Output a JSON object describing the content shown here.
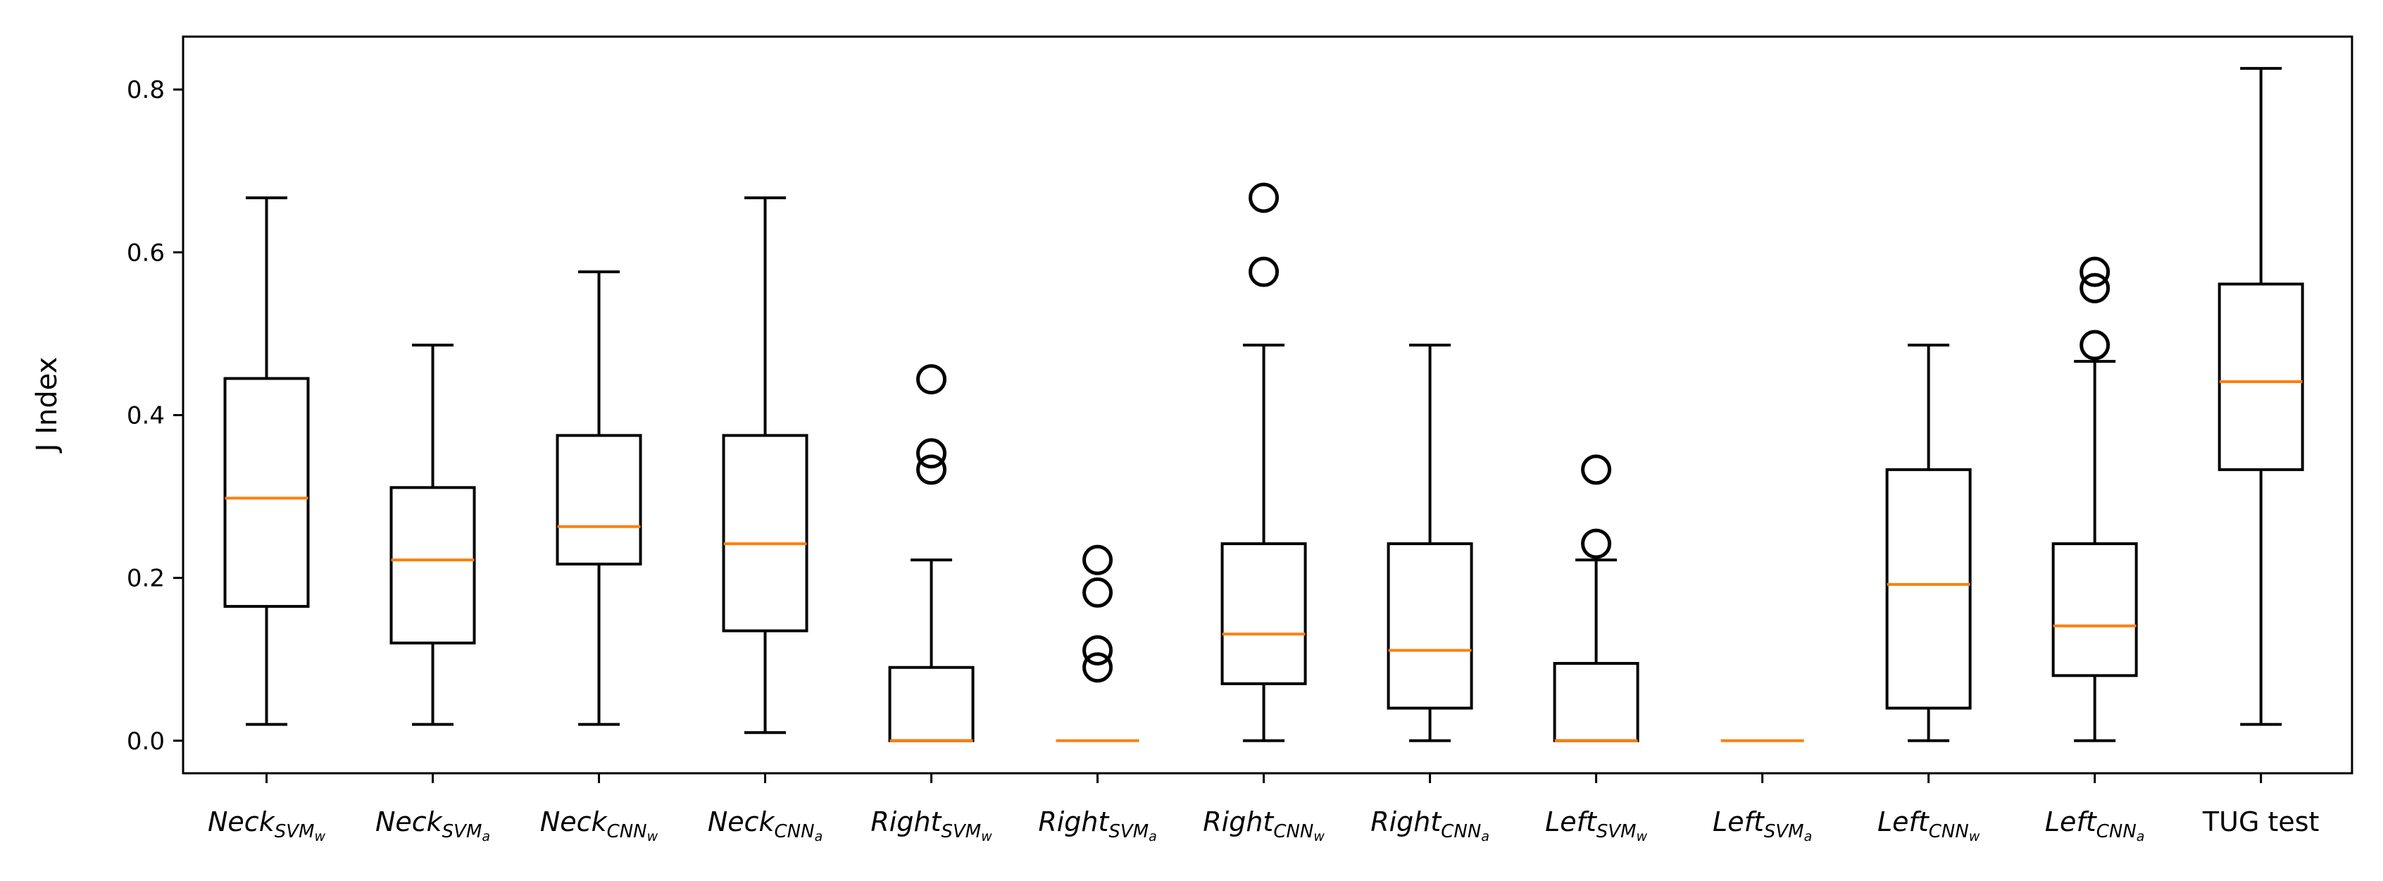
{
  "chart_data": {
    "type": "box",
    "ylabel": "J Index",
    "ylim": [
      -0.04,
      0.865
    ],
    "yticks": [
      "0.0",
      "0.2",
      "0.4",
      "0.6",
      "0.8"
    ],
    "grid": false,
    "legend": "none",
    "colors": {
      "box": "#000000",
      "median": "#ff7f0e",
      "outlier": "#000000"
    },
    "categories": [
      {
        "base": "Neck",
        "sub": "SVM",
        "subsub": "w"
      },
      {
        "base": "Neck",
        "sub": "SVM",
        "subsub": "a"
      },
      {
        "base": "Neck",
        "sub": "CNN",
        "subsub": "w"
      },
      {
        "base": "Neck",
        "sub": "CNN",
        "subsub": "a"
      },
      {
        "base": "Right",
        "sub": "SVM",
        "subsub": "w"
      },
      {
        "base": "Right",
        "sub": "SVM",
        "subsub": "a"
      },
      {
        "base": "Right",
        "sub": "CNN",
        "subsub": "w"
      },
      {
        "base": "Right",
        "sub": "CNN",
        "subsub": "a"
      },
      {
        "base": "Left",
        "sub": "SVM",
        "subsub": "w"
      },
      {
        "base": "Left",
        "sub": "SVM",
        "subsub": "a"
      },
      {
        "base": "Left",
        "sub": "CNN",
        "subsub": "w"
      },
      {
        "base": "Left",
        "sub": "CNN",
        "subsub": "a"
      },
      {
        "base": "TUG test",
        "sub": "",
        "subsub": ""
      }
    ],
    "boxes": [
      {
        "whisker_low": 0.02,
        "q1": 0.165,
        "median": 0.298,
        "q3": 0.445,
        "whisker_high": 0.667,
        "outliers": []
      },
      {
        "whisker_low": 0.02,
        "q1": 0.12,
        "median": 0.222,
        "q3": 0.311,
        "whisker_high": 0.486,
        "outliers": []
      },
      {
        "whisker_low": 0.02,
        "q1": 0.217,
        "median": 0.263,
        "q3": 0.375,
        "whisker_high": 0.576,
        "outliers": []
      },
      {
        "whisker_low": 0.01,
        "q1": 0.135,
        "median": 0.242,
        "q3": 0.375,
        "whisker_high": 0.667,
        "outliers": []
      },
      {
        "whisker_low": 0.0,
        "q1": 0.0,
        "median": 0.0,
        "q3": 0.09,
        "whisker_high": 0.222,
        "outliers": [
          0.333,
          0.353,
          0.444
        ]
      },
      {
        "whisker_low": 0.0,
        "q1": 0.0,
        "median": 0.0,
        "q3": 0.0,
        "whisker_high": 0.0,
        "outliers": [
          0.09,
          0.111,
          0.182,
          0.222
        ]
      },
      {
        "whisker_low": 0.0,
        "q1": 0.07,
        "median": 0.131,
        "q3": 0.242,
        "whisker_high": 0.486,
        "outliers": [
          0.576,
          0.667
        ]
      },
      {
        "whisker_low": 0.0,
        "q1": 0.04,
        "median": 0.111,
        "q3": 0.242,
        "whisker_high": 0.486,
        "outliers": []
      },
      {
        "whisker_low": 0.0,
        "q1": 0.0,
        "median": 0.0,
        "q3": 0.095,
        "whisker_high": 0.222,
        "outliers": [
          0.242,
          0.333
        ]
      },
      {
        "whisker_low": 0.0,
        "q1": 0.0,
        "median": 0.0,
        "q3": 0.0,
        "whisker_high": 0.0,
        "outliers": []
      },
      {
        "whisker_low": 0.0,
        "q1": 0.04,
        "median": 0.192,
        "q3": 0.333,
        "whisker_high": 0.486,
        "outliers": []
      },
      {
        "whisker_low": 0.0,
        "q1": 0.08,
        "median": 0.141,
        "q3": 0.242,
        "whisker_high": 0.466,
        "outliers": [
          0.486,
          0.556,
          0.576
        ]
      },
      {
        "whisker_low": 0.02,
        "q1": 0.333,
        "median": 0.441,
        "q3": 0.561,
        "whisker_high": 0.826,
        "outliers": []
      }
    ]
  }
}
